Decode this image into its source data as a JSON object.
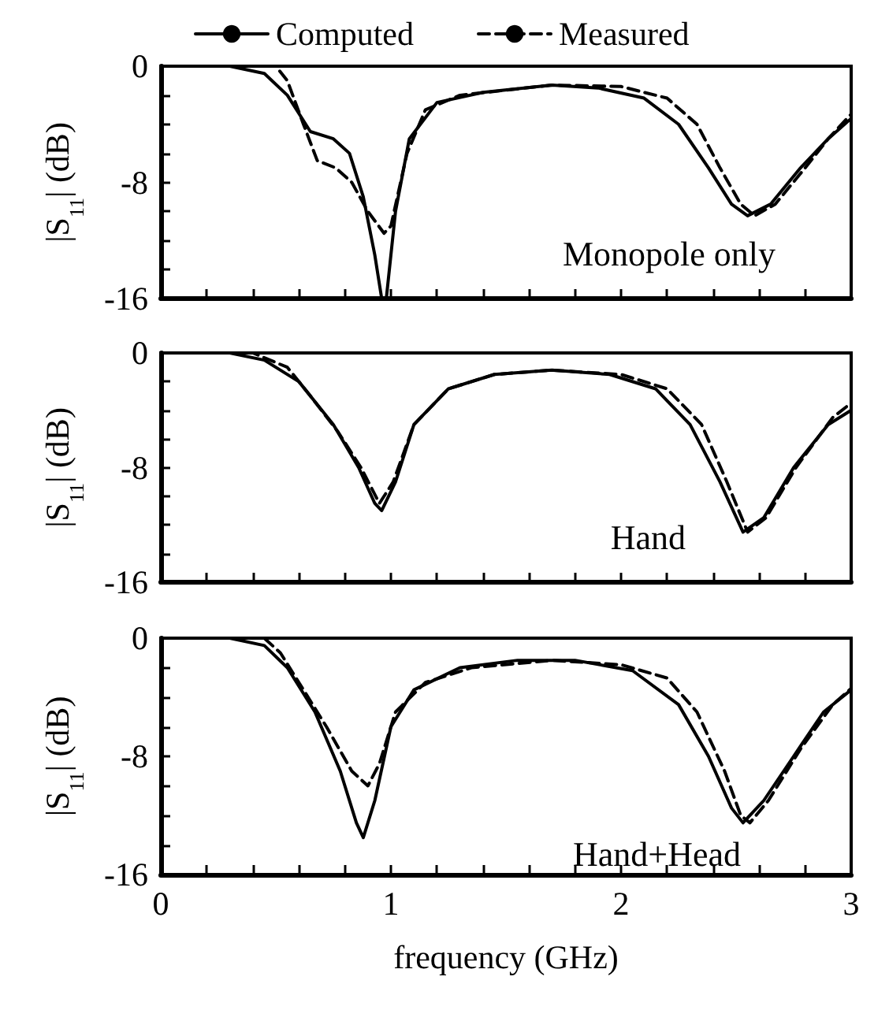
{
  "chart_data": [
    {
      "type": "line",
      "ylabel": "|S$_{11}$| (dB)",
      "legend": "top",
      "marker": "none",
      "grid": false,
      "tick_labels": "y",
      "annotations": [
        "Monopole only"
      ],
      "xlim": [
        0,
        3
      ],
      "ylim": [
        -16,
        0
      ],
      "xticks": [
        {
          "value": 0,
          "label": null
        },
        {
          "value": 0.2,
          "label": null
        },
        {
          "value": 0.4,
          "label": null
        },
        {
          "value": 0.6,
          "label": null
        },
        {
          "value": 0.8,
          "label": null
        },
        {
          "value": 1,
          "label": null
        },
        {
          "value": 1.2,
          "label": null
        },
        {
          "value": 1.4,
          "label": null
        },
        {
          "value": 1.6,
          "label": null
        },
        {
          "value": 1.8,
          "label": null
        },
        {
          "value": 2,
          "label": null
        },
        {
          "value": 2.2,
          "label": null
        },
        {
          "value": 2.4,
          "label": null
        },
        {
          "value": 2.6,
          "label": null
        },
        {
          "value": 2.8,
          "label": null
        },
        {
          "value": 3,
          "label": null
        }
      ],
      "yticks": [
        -16,
        {
          "value": -14,
          "label": null
        },
        {
          "value": -12,
          "label": null
        },
        {
          "value": -10,
          "label": null
        },
        -8,
        {
          "value": -6,
          "label": null
        },
        {
          "value": -4,
          "label": null
        },
        {
          "value": -2,
          "label": null
        },
        0
      ],
      "series": [
        {
          "name": "Computed",
          "color": "#000000",
          "line_style": "solid",
          "x": [
            0,
            0.3,
            0.45,
            0.55,
            0.65,
            0.75,
            0.82,
            0.88,
            0.93,
            0.96,
            0.98,
            1.02,
            1.08,
            1.2,
            1.4,
            1.7,
            1.9,
            2.1,
            2.25,
            2.38,
            2.48,
            2.55,
            2.65,
            2.78,
            2.9,
            3
          ],
          "values": [
            0,
            0,
            -0.5,
            -2,
            -4.5,
            -5,
            -6,
            -9,
            -13,
            -16,
            -16,
            -10,
            -5,
            -2.5,
            -1.8,
            -1.3,
            -1.5,
            -2.2,
            -4,
            -7,
            -9.5,
            -10.3,
            -9.5,
            -7,
            -5,
            -3.6
          ]
        },
        {
          "name": "Measured",
          "color": "#000000",
          "line_style": "dashed",
          "x": [
            0,
            0.5,
            0.55,
            0.62,
            0.68,
            0.76,
            0.83,
            0.9,
            0.97,
            1.0,
            1.07,
            1.15,
            1.3,
            1.7,
            2.0,
            2.2,
            2.33,
            2.43,
            2.52,
            2.58,
            2.67,
            2.8,
            2.9,
            3
          ],
          "values": [
            0,
            0,
            -1,
            -4,
            -6.5,
            -7,
            -8,
            -10,
            -11.5,
            -11,
            -6,
            -3,
            -2,
            -1.3,
            -1.4,
            -2.2,
            -4,
            -7,
            -9.5,
            -10.3,
            -9.5,
            -7,
            -5,
            -3.3
          ]
        }
      ]
    },
    {
      "type": "line",
      "ylabel": "|S$_{11}$| (dB)",
      "legend": false,
      "marker": "none",
      "grid": false,
      "tick_labels": "y",
      "annotations": [
        "Hand"
      ],
      "xlim": [
        0,
        3
      ],
      "ylim": [
        -16,
        0
      ],
      "xticks": [
        {
          "value": 0,
          "label": null
        },
        {
          "value": 0.2,
          "label": null
        },
        {
          "value": 0.4,
          "label": null
        },
        {
          "value": 0.6,
          "label": null
        },
        {
          "value": 0.8,
          "label": null
        },
        {
          "value": 1,
          "label": null
        },
        {
          "value": 1.2,
          "label": null
        },
        {
          "value": 1.4,
          "label": null
        },
        {
          "value": 1.6,
          "label": null
        },
        {
          "value": 1.8,
          "label": null
        },
        {
          "value": 2,
          "label": null
        },
        {
          "value": 2.2,
          "label": null
        },
        {
          "value": 2.4,
          "label": null
        },
        {
          "value": 2.6,
          "label": null
        },
        {
          "value": 2.8,
          "label": null
        },
        {
          "value": 3,
          "label": null
        }
      ],
      "yticks": [
        -16,
        {
          "value": -14,
          "label": null
        },
        {
          "value": -12,
          "label": null
        },
        {
          "value": -10,
          "label": null
        },
        -8,
        {
          "value": -6,
          "label": null
        },
        {
          "value": -4,
          "label": null
        },
        {
          "value": -2,
          "label": null
        },
        0
      ],
      "series": [
        {
          "color": "#000000",
          "line_style": "solid",
          "x": [
            0,
            0.3,
            0.45,
            0.6,
            0.75,
            0.86,
            0.93,
            0.96,
            1.02,
            1.1,
            1.25,
            1.45,
            1.7,
            1.95,
            2.15,
            2.3,
            2.43,
            2.53,
            2.62,
            2.75,
            2.9,
            3
          ],
          "values": [
            0,
            0,
            -0.5,
            -2,
            -5,
            -8,
            -10.5,
            -11,
            -9,
            -5,
            -2.5,
            -1.5,
            -1.2,
            -1.5,
            -2.5,
            -5,
            -9,
            -12.5,
            -11.5,
            -8,
            -5,
            -4
          ]
        },
        {
          "color": "#000000",
          "line_style": "dashed",
          "x": [
            0,
            0.4,
            0.55,
            0.65,
            0.77,
            0.87,
            0.95,
            1.01,
            1.1,
            1.25,
            1.45,
            1.7,
            2.0,
            2.2,
            2.35,
            2.46,
            2.55,
            2.63,
            2.76,
            2.92,
            3
          ],
          "values": [
            0,
            0,
            -1,
            -3,
            -5.5,
            -8,
            -10.5,
            -9,
            -5,
            -2.5,
            -1.5,
            -1.2,
            -1.5,
            -2.5,
            -5,
            -9,
            -12.5,
            -11.5,
            -8,
            -4.5,
            -3.5
          ]
        }
      ]
    },
    {
      "type": "line",
      "xlabel": "frequency (GHz)",
      "ylabel": "|S$_{11}$| (dB)",
      "legend": false,
      "marker": "none",
      "grid": false,
      "annotations": [
        "Hand+Head"
      ],
      "xlim": [
        0,
        3
      ],
      "ylim": [
        -16,
        0
      ],
      "xticks": [
        0,
        {
          "value": 0.2,
          "label": null
        },
        {
          "value": 0.4,
          "label": null
        },
        {
          "value": 0.6,
          "label": null
        },
        {
          "value": 0.8,
          "label": null
        },
        1,
        {
          "value": 1.2,
          "label": null
        },
        {
          "value": 1.4,
          "label": null
        },
        {
          "value": 1.6,
          "label": null
        },
        {
          "value": 1.8,
          "label": null
        },
        2,
        {
          "value": 2.2,
          "label": null
        },
        {
          "value": 2.4,
          "label": null
        },
        {
          "value": 2.6,
          "label": null
        },
        {
          "value": 2.8,
          "label": null
        },
        3
      ],
      "yticks": [
        -16,
        {
          "value": -14,
          "label": null
        },
        {
          "value": -12,
          "label": null
        },
        {
          "value": -10,
          "label": null
        },
        -8,
        {
          "value": -6,
          "label": null
        },
        {
          "value": -4,
          "label": null
        },
        {
          "value": -2,
          "label": null
        },
        0
      ],
      "series": [
        {
          "color": "#000000",
          "line_style": "solid",
          "x": [
            0,
            0.3,
            0.45,
            0.55,
            0.67,
            0.78,
            0.85,
            0.88,
            0.93,
            1.0,
            1.1,
            1.3,
            1.55,
            1.8,
            2.05,
            2.25,
            2.38,
            2.48,
            2.53,
            2.62,
            2.75,
            2.88,
            3
          ],
          "values": [
            0,
            0,
            -0.5,
            -2,
            -5,
            -9,
            -12.5,
            -13.5,
            -11,
            -6,
            -3.5,
            -2,
            -1.5,
            -1.5,
            -2.2,
            -4.5,
            -8,
            -11.5,
            -12.5,
            -11,
            -8,
            -5,
            -3.5
          ]
        },
        {
          "color": "#000000",
          "line_style": "dashed",
          "x": [
            0,
            0.45,
            0.52,
            0.6,
            0.72,
            0.83,
            0.9,
            0.95,
            1.02,
            1.15,
            1.35,
            1.7,
            2.0,
            2.2,
            2.33,
            2.45,
            2.52,
            2.56,
            2.64,
            2.78,
            2.92,
            3
          ],
          "values": [
            0,
            0,
            -1,
            -3,
            -6,
            -9,
            -10,
            -8.5,
            -5,
            -3,
            -2,
            -1.5,
            -1.8,
            -2.7,
            -5,
            -9,
            -12,
            -12.5,
            -11,
            -7.5,
            -4.5,
            -3.4
          ]
        }
      ]
    }
  ]
}
